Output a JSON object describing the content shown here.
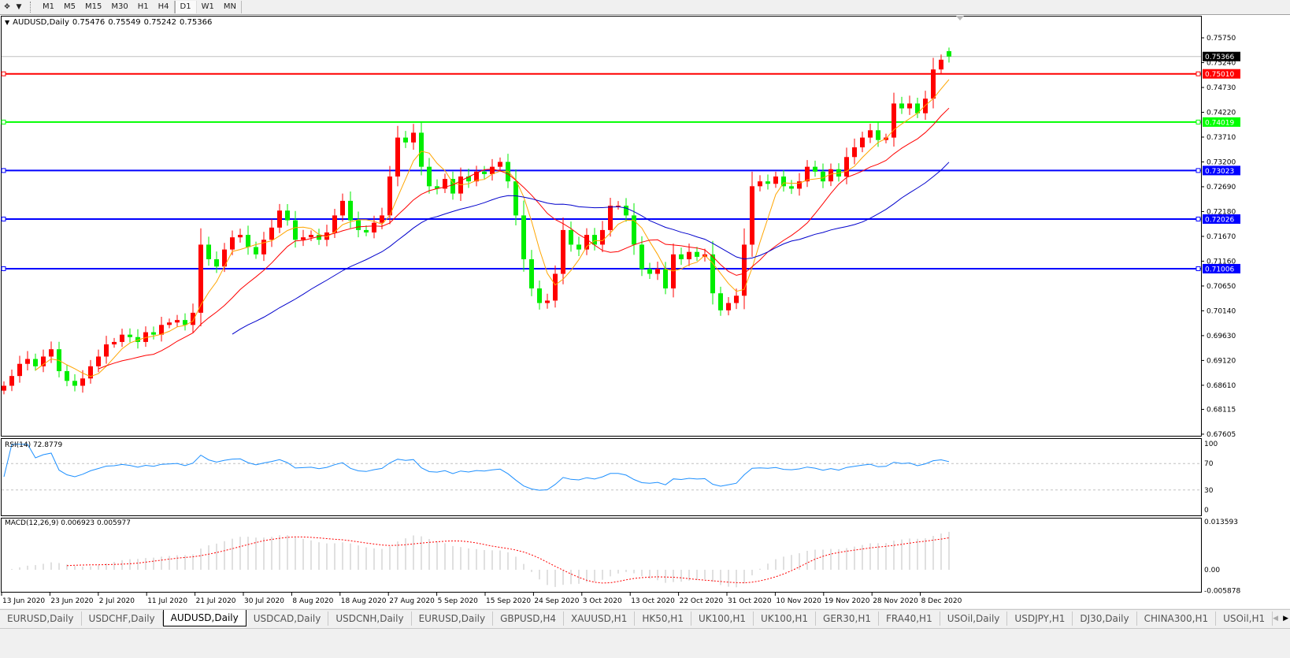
{
  "toolbar": {
    "icons": [
      "crosshair-icon",
      "dropdown-arrow-icon"
    ],
    "timeframes": [
      "M1",
      "M5",
      "M15",
      "M30",
      "H1",
      "H4",
      "D1",
      "W1",
      "MN"
    ],
    "active_timeframe": "D1"
  },
  "header": {
    "symbol": "AUDUSD,Daily",
    "open": "0.75476",
    "high": "0.75549",
    "low": "0.75242",
    "close": "0.75366"
  },
  "rsi": {
    "label": "RSI(14) 72.8779",
    "levels": [
      "100",
      "70",
      "30",
      "0"
    ]
  },
  "macd": {
    "label": "MACD(12,26,9) 0.006923 0.005977",
    "axis": [
      "0.013593",
      "0.00",
      "-0.005878"
    ]
  },
  "colors": {
    "bull_candle": "#ff0000",
    "bear_candle": "#00ee00",
    "ma_fast": "#ffa500",
    "ma_mid": "#ff0000",
    "ma_slow": "#0000cc",
    "rsi_line": "#1e90ff",
    "macd_signal": "#ff0000",
    "macd_hist": "#c0c0c0"
  },
  "chart_data": {
    "type": "candlestick",
    "price_ticks": [
      "0.75750",
      "0.75240",
      "0.74730",
      "0.74220",
      "0.73710",
      "0.73200",
      "0.72690",
      "0.72180",
      "0.71670",
      "0.71160",
      "0.70650",
      "0.70140",
      "0.69630",
      "0.69120",
      "0.68610",
      "0.68115",
      "0.67605"
    ],
    "ylim": [
      0.67605,
      0.7575
    ],
    "date_ticks": [
      "13 Jun 2020",
      "23 Jun 2020",
      "2 Jul 2020",
      "11 Jul 2020",
      "21 Jul 2020",
      "30 Jul 2020",
      "8 Aug 2020",
      "18 Aug 2020",
      "27 Aug 2020",
      "5 Sep 2020",
      "15 Sep 2020",
      "24 Sep 2020",
      "3 Oct 2020",
      "13 Oct 2020",
      "22 Oct 2020",
      "31 Oct 2020",
      "10 Nov 2020",
      "19 Nov 2020",
      "28 Nov 2020",
      "8 Dec 2020"
    ],
    "current_price": {
      "value": "0.75366",
      "color": "#000000"
    },
    "levels": [
      {
        "value": "0.75010",
        "color": "#ff0000"
      },
      {
        "value": "0.74019",
        "color": "#00ff00"
      },
      {
        "value": "0.73023",
        "color": "#0000ff"
      },
      {
        "value": "0.72026",
        "color": "#0000ff"
      },
      {
        "value": "0.71006",
        "color": "#0000ff"
      }
    ],
    "close": [
      0.686,
      0.688,
      0.6905,
      0.6915,
      0.69,
      0.692,
      0.6935,
      0.689,
      0.687,
      0.686,
      0.6875,
      0.69,
      0.692,
      0.6945,
      0.695,
      0.6965,
      0.696,
      0.695,
      0.697,
      0.6965,
      0.6985,
      0.699,
      0.6995,
      0.6985,
      0.701,
      0.715,
      0.712,
      0.7105,
      0.714,
      0.7165,
      0.717,
      0.7145,
      0.713,
      0.716,
      0.7185,
      0.722,
      0.72,
      0.716,
      0.7165,
      0.717,
      0.716,
      0.7175,
      0.721,
      0.724,
      0.72,
      0.718,
      0.7175,
      0.7195,
      0.721,
      0.729,
      0.737,
      0.736,
      0.738,
      0.731,
      0.727,
      0.7265,
      0.7285,
      0.7255,
      0.729,
      0.728,
      0.73,
      0.7295,
      0.731,
      0.732,
      0.728,
      0.721,
      0.712,
      0.706,
      0.703,
      0.7035,
      0.709,
      0.718,
      0.715,
      0.714,
      0.717,
      0.715,
      0.718,
      0.723,
      0.723,
      0.721,
      0.715,
      0.71,
      0.709,
      0.71,
      0.706,
      0.713,
      0.712,
      0.7135,
      0.7125,
      0.713,
      0.705,
      0.7015,
      0.703,
      0.7045,
      0.715,
      0.727,
      0.728,
      0.7275,
      0.729,
      0.727,
      0.7265,
      0.728,
      0.731,
      0.73,
      0.728,
      0.7305,
      0.729,
      0.733,
      0.735,
      0.737,
      0.7385,
      0.7365,
      0.737,
      0.744,
      0.743,
      0.744,
      0.742,
      0.745,
      0.751,
      0.753,
      0.7537
    ]
  },
  "tabs": [
    "EURUSD,Daily",
    "USDCHF,Daily",
    "AUDUSD,Daily",
    "USDCAD,Daily",
    "USDCNH,Daily",
    "EURUSD,Daily",
    "GBPUSD,H4",
    "XAUUSD,H1",
    "HK50,H1",
    "UK100,H1",
    "UK100,H1",
    "GER30,H1",
    "FRA40,H1",
    "USOil,Daily",
    "USDJPY,H1",
    "DJ30,Daily",
    "CHINA300,H1",
    "USOil,H1"
  ],
  "active_tab": "AUDUSD,Daily"
}
